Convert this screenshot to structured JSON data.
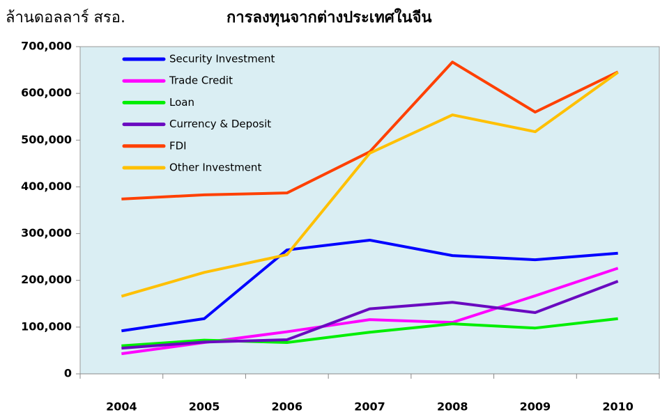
{
  "chart_data": {
    "type": "line",
    "title": "การลงทุนจากต่างประเทศในจีน",
    "y_label": "ล้านดอลลาร์ สรอ.",
    "categories": [
      "2004",
      "2005",
      "2006",
      "2007",
      "2008",
      "2009",
      "2010"
    ],
    "series": [
      {
        "name": "Security Investment",
        "color": "#0000ff",
        "values": [
          92000,
          118000,
          265000,
          286000,
          253000,
          244000,
          258000
        ]
      },
      {
        "name": "Trade Credit",
        "color": "#ff00ff",
        "values": [
          43000,
          67000,
          90000,
          116000,
          110000,
          167000,
          226000
        ]
      },
      {
        "name": "Loan",
        "color": "#00ee00",
        "values": [
          60000,
          72000,
          67000,
          89000,
          107000,
          98000,
          118000
        ]
      },
      {
        "name": "Currency & Deposit",
        "color": "#6a0ac0",
        "values": [
          55000,
          68000,
          73000,
          139000,
          153000,
          131000,
          198000
        ]
      },
      {
        "name": "FDI",
        "color": "#ff4000",
        "values": [
          374000,
          383000,
          387000,
          475000,
          667000,
          560000,
          646000
        ]
      },
      {
        "name": "Other Investment",
        "color": "#ffc000",
        "values": [
          166000,
          217000,
          255000,
          472000,
          554000,
          518000,
          645000
        ]
      }
    ],
    "ylim": [
      0,
      700000
    ],
    "yticks": [
      0,
      {
        "value": 100000,
        "label": "100,000"
      },
      {
        "value": 200000,
        "label": "200,000"
      },
      {
        "value": 300000,
        "label": "300,000"
      },
      {
        "value": 400000,
        "label": "400,000"
      },
      {
        "value": 500000,
        "label": "500,000"
      },
      {
        "value": 600000,
        "label": "600,000"
      },
      {
        "value": 700000,
        "label": "700,000"
      }
    ],
    "legend": "top-left"
  }
}
